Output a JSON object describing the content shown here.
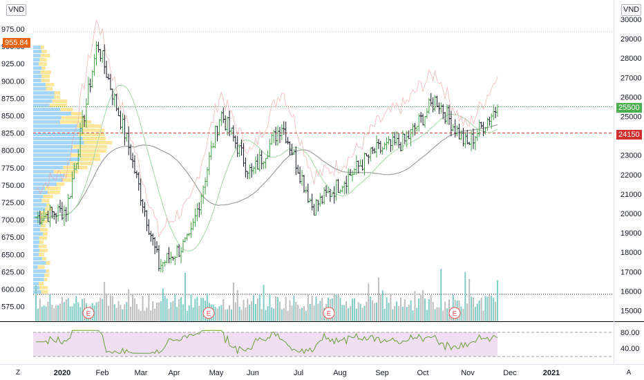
{
  "header": {
    "left_currency": "VND",
    "right_currency": "VND"
  },
  "axes": {
    "left_ticks": [
      "975.00",
      "950.00",
      "925.00",
      "900.00",
      "875.00",
      "850.00",
      "825.00",
      "800.00",
      "775.00",
      "750.00",
      "725.00",
      "700.00",
      "675.00",
      "650.00",
      "625.00",
      "600.00",
      "575.00"
    ],
    "right_ticks": [
      "30000",
      "29000",
      "28000",
      "27000",
      "26000",
      "25000",
      "24000",
      "23000",
      "22000",
      "21000",
      "20000",
      "19000",
      "18000",
      "17000",
      "16000",
      "15000"
    ],
    "x_ticks": [
      "2020",
      "Feb",
      "Mar",
      "Apr",
      "May",
      "Jun",
      "Jul",
      "Aug",
      "Sep",
      "Oct",
      "Nov",
      "Dec",
      "2021"
    ],
    "x_ticks_bold": [
      "2020",
      "2021"
    ],
    "rsi_ticks": [
      "80.00",
      "40.00"
    ]
  },
  "tags": {
    "left_price": "955.84",
    "right_last": "25500",
    "right_prev": "24150",
    "left_price_color": "#e8630a",
    "right_last_color": "#4caf50",
    "right_prev_color": "#d32f2f"
  },
  "earnings_marker": "E",
  "bottom": {
    "left_button": "Z",
    "right_button": "A"
  },
  "chart_data": {
    "type": "bar",
    "instrument_currency": "VND",
    "price_range_right": [
      15000,
      30000
    ],
    "price_range_left": [
      560,
      990
    ],
    "months": [
      "Jan",
      "Feb",
      "Mar",
      "Apr",
      "May",
      "Jun",
      "Jul",
      "Aug",
      "Sep",
      "Oct",
      "Nov"
    ],
    "monthly_close_approx": [
      20200,
      28200,
      23500,
      18500,
      24800,
      22000,
      22300,
      21700,
      23000,
      23700,
      25500
    ],
    "last_close": 25500,
    "previous_close": 24150,
    "moving_average_end": 23000,
    "earnings_months": [
      "Feb",
      "May",
      "Jul",
      "Oct"
    ],
    "rsi_levels": [
      80,
      40
    ],
    "grid": false
  }
}
